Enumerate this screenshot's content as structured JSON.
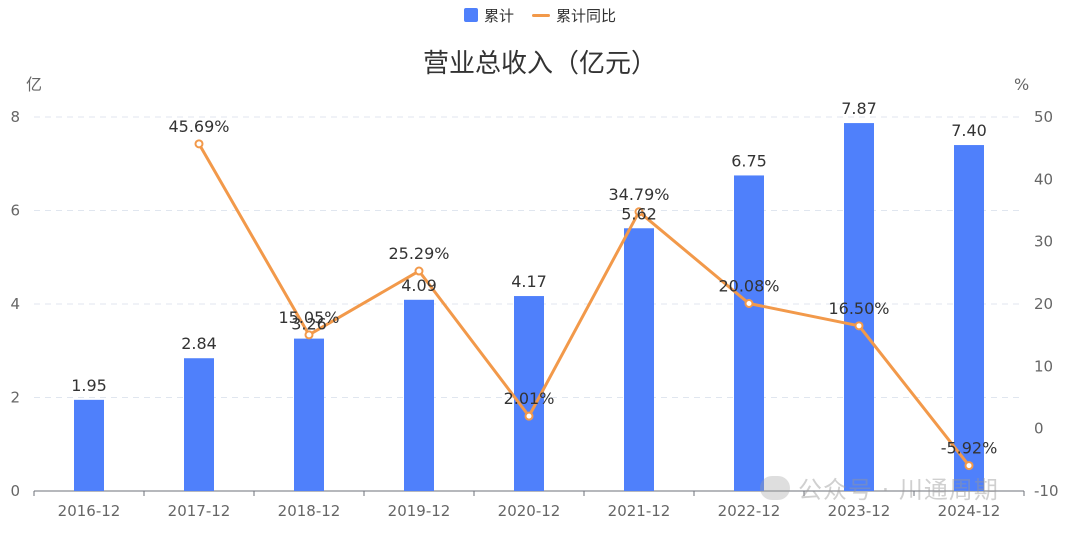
{
  "chart_data": {
    "type": "bar+line",
    "title": "营业总收入（亿元）",
    "categories": [
      "2016-12",
      "2017-12",
      "2018-12",
      "2019-12",
      "2020-12",
      "2021-12",
      "2022-12",
      "2023-12",
      "2024-12"
    ],
    "series": [
      {
        "name": "累计",
        "type": "bar",
        "axis": "left",
        "values": [
          1.95,
          2.84,
          3.26,
          4.09,
          4.17,
          5.62,
          6.75,
          7.87,
          7.4
        ]
      },
      {
        "name": "累计同比",
        "type": "line",
        "axis": "right",
        "values": [
          null,
          45.69,
          15.05,
          25.29,
          2.01,
          34.79,
          20.08,
          16.5,
          -5.92
        ]
      }
    ],
    "bar_labels": [
      "1.95",
      "2.84",
      "3.26",
      "4.09",
      "4.17",
      "5.62",
      "6.75",
      "7.87",
      "7.40"
    ],
    "line_labels": [
      "",
      "45.69%",
      "15.05%",
      "25.29%",
      "2.01%",
      "34.79%",
      "20.08%",
      "16.50%",
      "-5.92%"
    ],
    "left_axis": {
      "unit": "亿",
      "min": 0,
      "max": 8,
      "ticks": [
        0,
        2,
        4,
        6,
        8
      ]
    },
    "right_axis": {
      "unit": "%",
      "min": -10,
      "max": 50,
      "ticks": [
        -10,
        0,
        10,
        20,
        30,
        40,
        50
      ]
    },
    "legend_position": "top-center",
    "grid": "horizontal dashed",
    "colors": {
      "bar": "#4f80fb",
      "line": "#f2994a",
      "text": "#333333",
      "axis": "#666666",
      "grid": "#e0e6ef"
    }
  },
  "watermark": {
    "text": "公众号 · 川通周期"
  }
}
